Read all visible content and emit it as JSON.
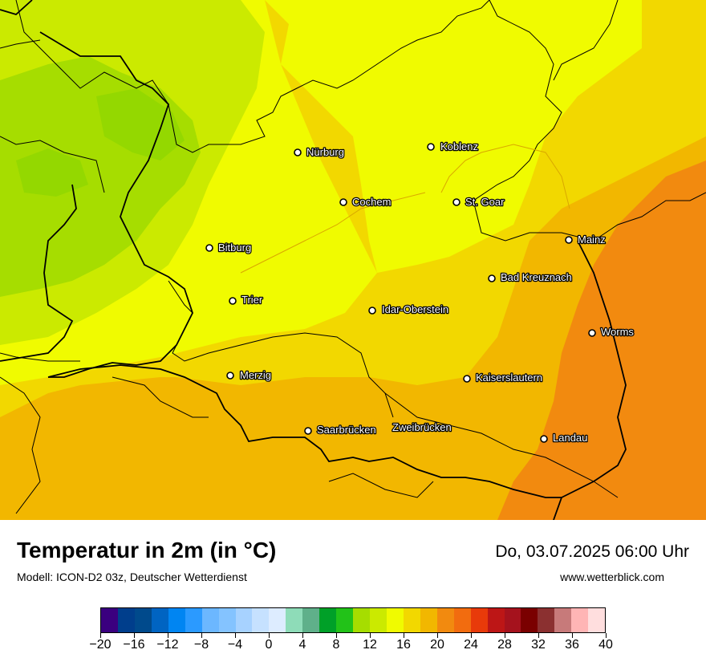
{
  "map": {
    "background_colors": {
      "green": "#a6dd00",
      "lime": "#cbea00",
      "yellow": "#f0fb00",
      "gold": "#f2d800",
      "orange_light": "#f2b700",
      "orange": "#f2890f",
      "water": "#efb500"
    },
    "cities": [
      {
        "name": "Nürburg"
      },
      {
        "name": "Koblenz"
      },
      {
        "name": "Cochem"
      },
      {
        "name": "St. Goar"
      },
      {
        "name": "Bitburg"
      },
      {
        "name": "Mainz"
      },
      {
        "name": "Bad Kreuznach"
      },
      {
        "name": "Trier"
      },
      {
        "name": "Idar-Oberstein"
      },
      {
        "name": "Worms"
      },
      {
        "name": "Merzig"
      },
      {
        "name": "Kaiserslautern"
      },
      {
        "name": "Saarbrücken"
      },
      {
        "name": "Zweibrücken"
      },
      {
        "name": "Landau"
      }
    ]
  },
  "footer": {
    "title": "Temperatur in 2m (in °C)",
    "subtitle": "Modell: ICON-D2 03z, Deutscher Wetterdienst",
    "datetime": "Do, 03.07.2025 06:00 Uhr",
    "website": "www.wetterblick.com"
  },
  "legend": {
    "colors": [
      "#3a007f",
      "#003e8c",
      "#004a8c",
      "#0064c2",
      "#0085f2",
      "#2b9aff",
      "#6cb7ff",
      "#84c3ff",
      "#a7d2ff",
      "#c6e1ff",
      "#ddecff",
      "#8edcb8",
      "#5fb08a",
      "#00a028",
      "#22c218",
      "#a6dd00",
      "#cbea00",
      "#f0fb00",
      "#f2d800",
      "#f2b700",
      "#f28a0f",
      "#f26c0f",
      "#e83a0a",
      "#bd1616",
      "#a5121d",
      "#7a0000",
      "#8b3030",
      "#c77a7a",
      "#ffb5b5",
      "#ffdede"
    ],
    "tick_labels": [
      "−20",
      "−16",
      "−12",
      "−8",
      "−4",
      "0",
      "4",
      "8",
      "12",
      "16",
      "20",
      "24",
      "28",
      "32",
      "36",
      "40"
    ]
  }
}
